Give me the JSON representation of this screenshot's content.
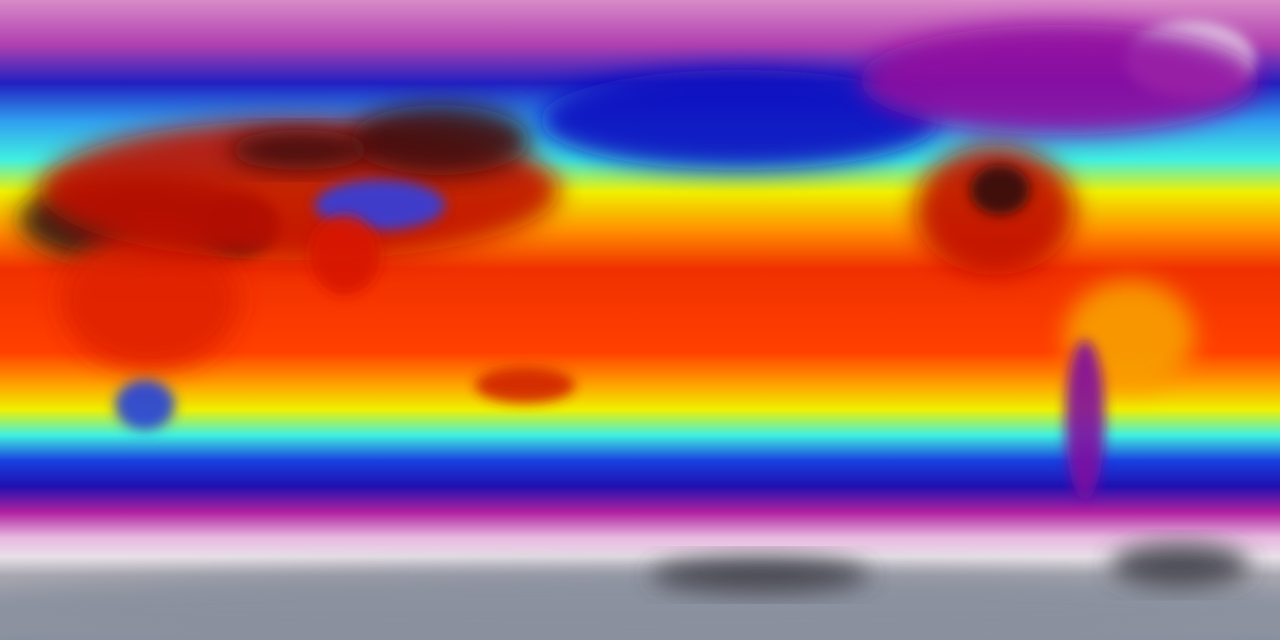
{
  "map": {
    "kind": "global temperature field, equirectangular projection",
    "colormap": {
      "north_polar": "#d070c0",
      "magenta": "#a000a0",
      "blue": "#1010d0",
      "cyan": "#40f0f0",
      "yellow": "#f8f800",
      "orange": "#ff8000",
      "red": "#f02000",
      "dark": "#301010",
      "white": "#f0e8f0",
      "antarctic_gray": "#9098a8"
    },
    "bands": [
      {
        "stop": 0.0,
        "color": "#d88ac8"
      },
      {
        "stop": 0.07,
        "color": "#b040b0"
      },
      {
        "stop": 0.13,
        "color": "#2020c0"
      },
      {
        "stop": 0.19,
        "color": "#30a0f0"
      },
      {
        "stop": 0.25,
        "color": "#40f0e0"
      },
      {
        "stop": 0.3,
        "color": "#f0f000"
      },
      {
        "stop": 0.36,
        "color": "#ff9000"
      },
      {
        "stop": 0.42,
        "color": "#f03000"
      },
      {
        "stop": 0.55,
        "color": "#ff4000"
      },
      {
        "stop": 0.6,
        "color": "#ffa000"
      },
      {
        "stop": 0.64,
        "color": "#f0f000"
      },
      {
        "stop": 0.68,
        "color": "#40f0e0"
      },
      {
        "stop": 0.72,
        "color": "#1840e0"
      },
      {
        "stop": 0.76,
        "color": "#2010b0"
      },
      {
        "stop": 0.8,
        "color": "#b020a0"
      },
      {
        "stop": 0.84,
        "color": "#e8b8e0"
      },
      {
        "stop": 0.87,
        "color": "#e8e0e8"
      },
      {
        "stop": 0.9,
        "color": "#a8a8b0"
      },
      {
        "stop": 1.0,
        "color": "#8890a0"
      }
    ],
    "regions": [
      {
        "name": "sahara-arabia-hot",
        "color": "#2a1414"
      },
      {
        "name": "africa-red",
        "color": "#e02000"
      },
      {
        "name": "eurasia-hot",
        "color": "#c01000"
      },
      {
        "name": "siberia-dark",
        "color": "#401008"
      },
      {
        "name": "tibet-cold",
        "color": "#3040e0"
      },
      {
        "name": "india-red",
        "color": "#d81800"
      },
      {
        "name": "north-pacific-cold",
        "color": "#1010c0"
      },
      {
        "name": "greenland-ice",
        "color": "#e8dce8"
      },
      {
        "name": "arctic-canada",
        "color": "#9010a0"
      },
      {
        "name": "north-america-hot",
        "color": "#c01000"
      },
      {
        "name": "north-america-dark",
        "color": "#301010"
      },
      {
        "name": "south-america-warm",
        "color": "#f8a000"
      },
      {
        "name": "andes-cold",
        "color": "#8010a0"
      },
      {
        "name": "australia-red",
        "color": "#d02000"
      },
      {
        "name": "southern-africa-cool",
        "color": "#2040e0"
      },
      {
        "name": "antarctica-gray",
        "color": "#8a909e"
      },
      {
        "name": "antarctica-dark",
        "color": "#404048"
      }
    ]
  }
}
